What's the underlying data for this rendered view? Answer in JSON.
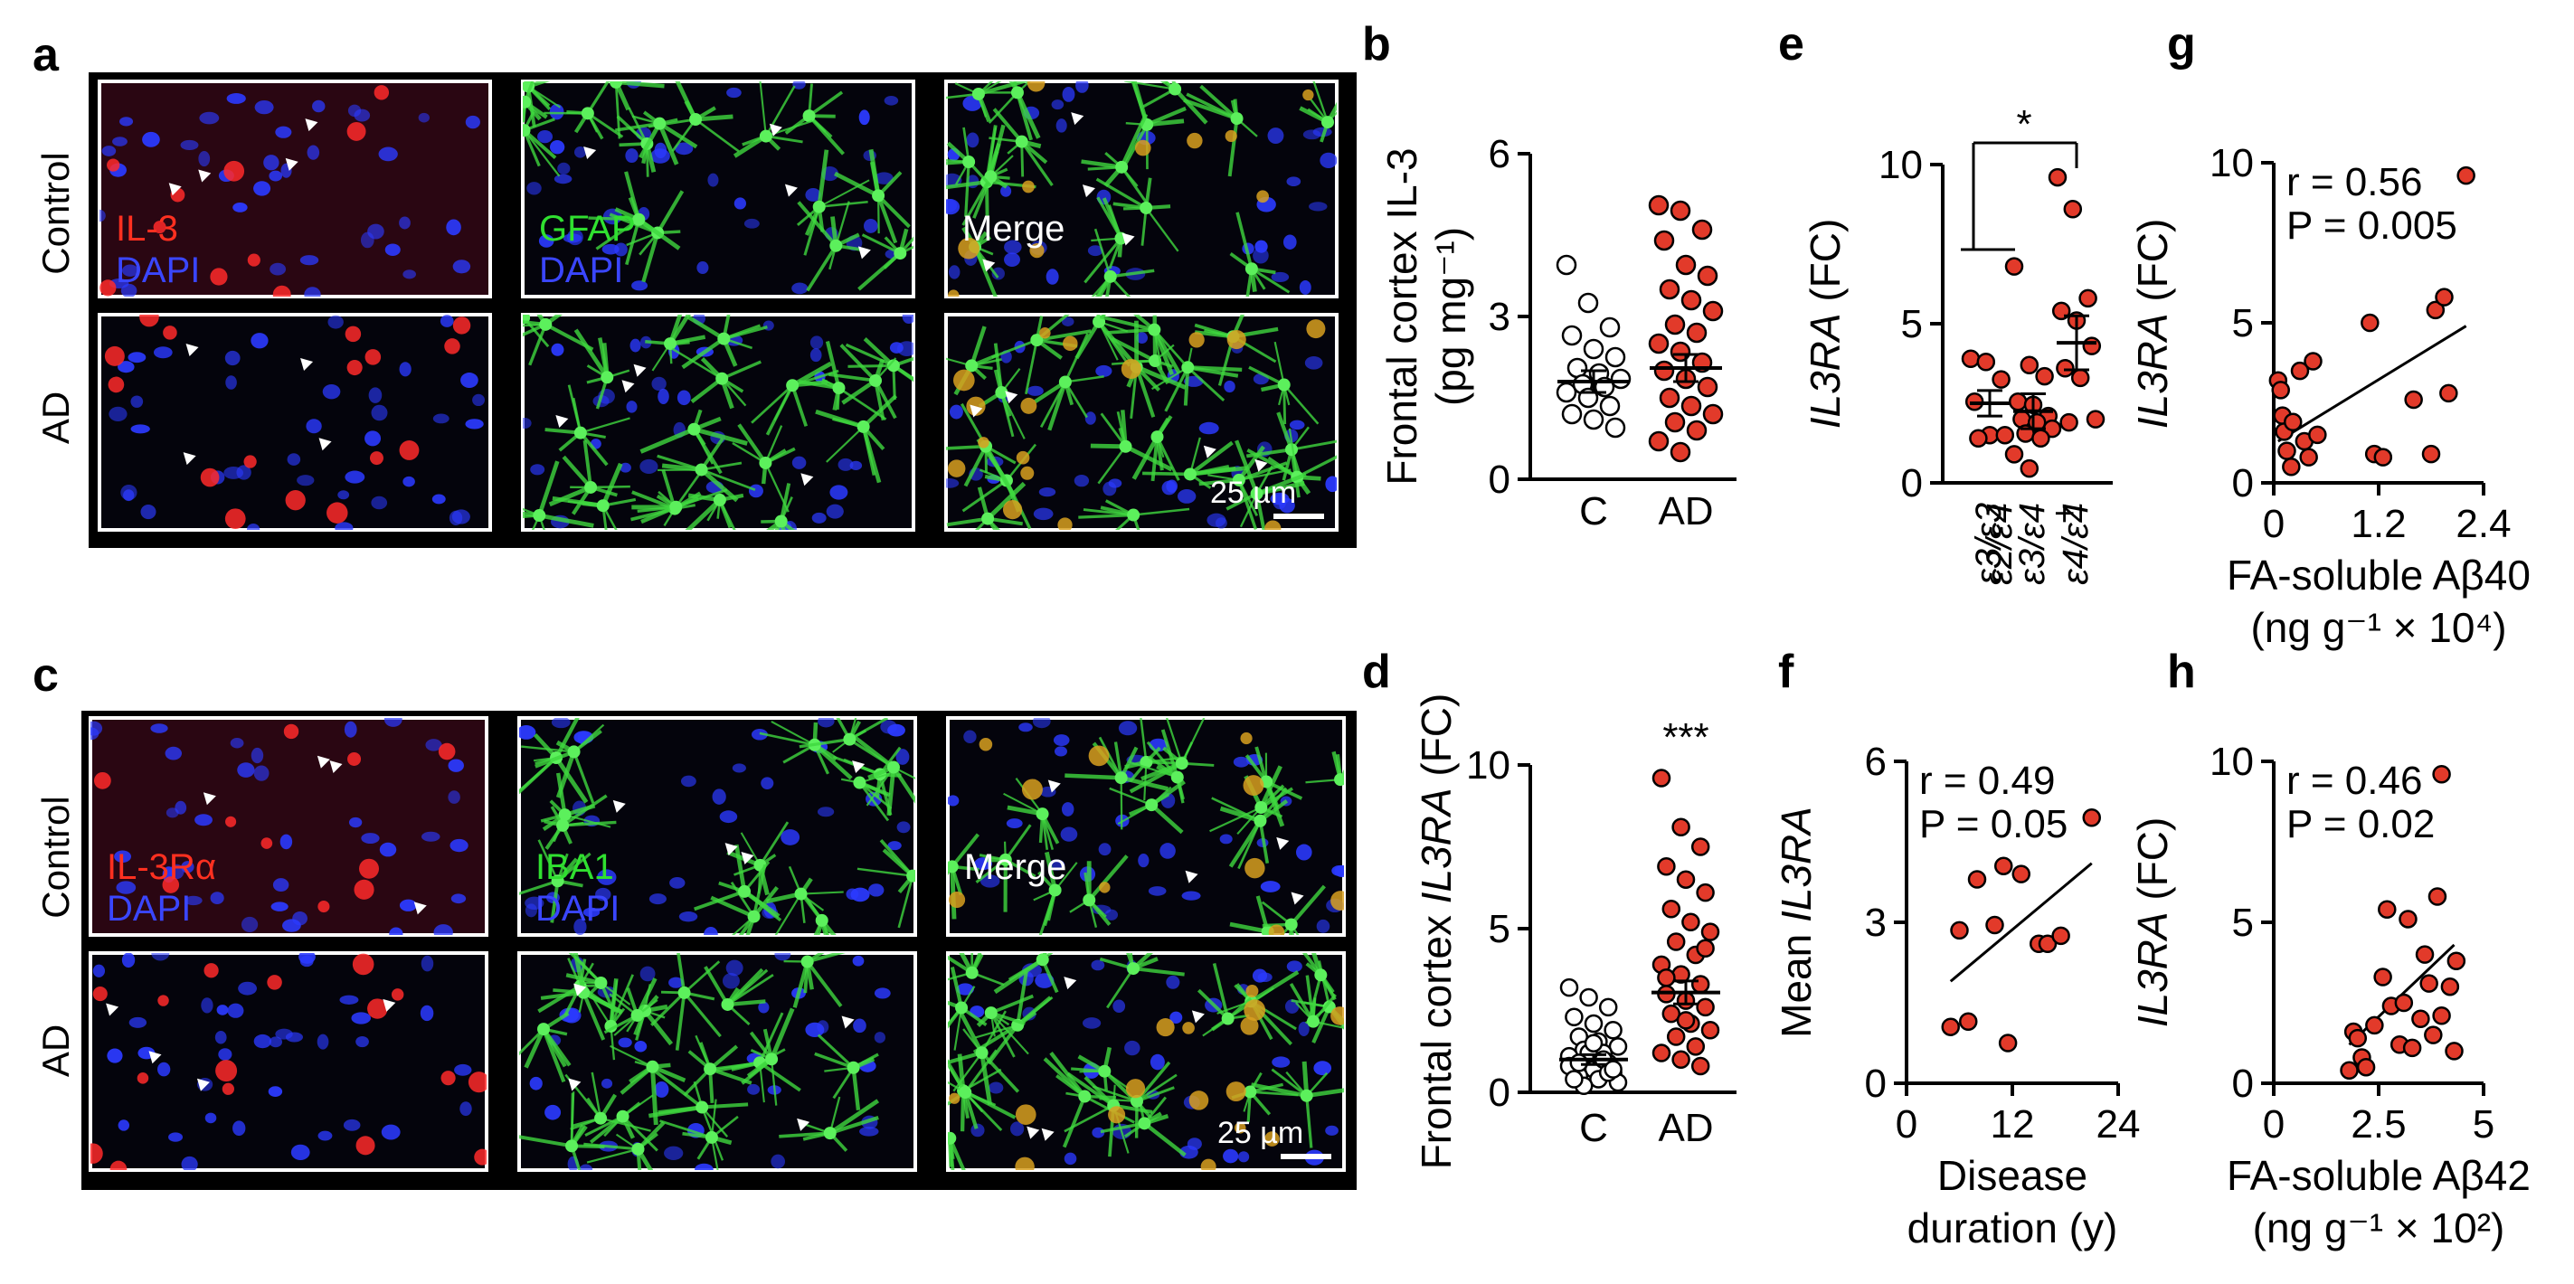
{
  "panel_letters": {
    "a": "a",
    "b": "b",
    "c": "c",
    "d": "d",
    "e": "e",
    "f": "f",
    "g": "g",
    "h": "h"
  },
  "micrographs": {
    "a": {
      "row_labels": [
        "Control",
        "AD"
      ],
      "stain_labels": [
        {
          "top": "IL-3",
          "bottom": "DAPI",
          "top_color": "#ff3020",
          "bottom_color": "#3a46ff"
        },
        {
          "top": "GFAP",
          "bottom": "DAPI",
          "top_color": "#30e030",
          "bottom_color": "#3a46ff"
        },
        {
          "top": "Merge",
          "bottom": "",
          "top_color": "#ffffff",
          "bottom_color": "#ffffff"
        }
      ],
      "scale_bar": "25 µm"
    },
    "c": {
      "row_labels": [
        "Control",
        "AD"
      ],
      "stain_labels": [
        {
          "top": "IL-3Rα",
          "bottom": "DAPI",
          "top_color": "#ff3020",
          "bottom_color": "#3a46ff"
        },
        {
          "top": "IBA1",
          "bottom": "DAPI",
          "top_color": "#30e030",
          "bottom_color": "#3a46ff"
        },
        {
          "top": "Merge",
          "bottom": "",
          "top_color": "#ffffff",
          "bottom_color": "#ffffff"
        }
      ],
      "scale_bar": "25 µm"
    }
  },
  "chart_data": [
    {
      "panel": "b",
      "type": "scatter",
      "ylabel_line1": "Frontal cortex IL-3",
      "ylabel_line2": "(pg mg⁻¹)",
      "categories": [
        "C",
        "AD"
      ],
      "ylim": [
        0,
        6
      ],
      "yticks": [
        "0",
        "3",
        "6"
      ],
      "series": [
        {
          "group": "C",
          "fill": "#ffffff",
          "values": [
            3.95,
            3.25,
            2.8,
            2.65,
            2.4,
            2.25,
            2.05,
            1.95,
            1.85,
            1.75,
            1.7,
            1.6,
            1.5,
            1.35,
            1.2,
            1.1,
            0.95
          ],
          "mean": 1.8,
          "sem": 0.2
        },
        {
          "group": "AD",
          "fill": "#e23a2a",
          "values": [
            5.05,
            4.95,
            4.6,
            4.4,
            3.95,
            3.75,
            3.5,
            3.3,
            3.1,
            2.85,
            2.7,
            2.5,
            2.35,
            2.15,
            2.0,
            1.85,
            1.7,
            1.5,
            1.35,
            1.2,
            1.05,
            0.9,
            0.7,
            0.5
          ],
          "mean": 2.05,
          "sem": 0.25
        }
      ]
    },
    {
      "panel": "d",
      "type": "scatter",
      "ylabel_pre": "Frontal cortex ",
      "ylabel_italic": "IL3RA",
      "ylabel_post": " (FC)",
      "categories": [
        "C",
        "AD"
      ],
      "ylim": [
        0,
        10
      ],
      "yticks": [
        "0",
        "5",
        "10"
      ],
      "annotation": "***",
      "series": [
        {
          "group": "C",
          "fill": "#ffffff",
          "values": [
            3.2,
            2.9,
            2.6,
            2.3,
            2.1,
            1.9,
            1.7,
            1.55,
            1.4,
            1.3,
            1.2,
            1.1,
            1.0,
            0.9,
            0.8,
            0.7,
            0.6,
            0.5,
            0.4,
            0.3,
            0.2,
            1.0,
            0.8,
            1.2,
            0.6,
            0.4,
            1.5,
            0.7,
            0.9
          ],
          "mean": 1.0,
          "sem": 0.15
        },
        {
          "group": "AD",
          "fill": "#e23a2a",
          "values": [
            9.6,
            8.1,
            7.5,
            6.9,
            6.5,
            6.1,
            5.6,
            5.2,
            4.9,
            4.6,
            4.2,
            3.9,
            3.6,
            3.3,
            3.0,
            2.8,
            2.6,
            2.4,
            2.1,
            1.9,
            1.7,
            1.4,
            1.2,
            1.0,
            0.8,
            3.5,
            2.2,
            4.4
          ],
          "mean": 3.05,
          "sem": 0.35
        }
      ]
    },
    {
      "panel": "e",
      "type": "scatter",
      "ylabel_italic": "IL3RA",
      "ylabel_post": " (FC)",
      "categories": [
        "ε3/ε3",
        "ε2/ε4 + ε3/ε4",
        "ε4/ε4"
      ],
      "category_lines": [
        [
          "ε3/ε3"
        ],
        [
          "ε2/ε4",
          "ε3/ε4",
          "+"
        ],
        [
          "ε4/ε4"
        ]
      ],
      "ylim": [
        0,
        10
      ],
      "yticks": [
        "0",
        "5",
        "10"
      ],
      "annotation": "*",
      "series": [
        {
          "group": "ε3/ε3",
          "fill": "#e23a2a",
          "values": [
            3.9,
            3.8,
            3.25,
            2.55,
            1.5,
            1.5,
            1.4
          ],
          "mean": 2.5,
          "sem": 0.4
        },
        {
          "group": "ε2/ε4 + ε3/ε4",
          "fill": "#e23a2a",
          "values": [
            6.8,
            3.7,
            3.35,
            2.55,
            2.45,
            2.1,
            2.0,
            1.9,
            1.7,
            1.55,
            1.4,
            0.9,
            0.45
          ],
          "mean": 2.25,
          "sem": 0.55
        },
        {
          "group": "ε4/ε4",
          "fill": "#e23a2a",
          "values": [
            9.6,
            8.6,
            5.8,
            5.4,
            5.1,
            4.3,
            3.6,
            3.3,
            2.0,
            1.9
          ],
          "mean": 4.4,
          "sem": 0.85
        }
      ]
    },
    {
      "panel": "f",
      "type": "scatter",
      "ylabel_pre": "Mean ",
      "ylabel_italic": "IL3RA",
      "xlabel_line1": "Disease",
      "xlabel_line2": "duration (y)",
      "xlim": [
        0,
        24
      ],
      "xticks": [
        "0",
        "12",
        "24"
      ],
      "ylim": [
        0,
        6
      ],
      "yticks": [
        "0",
        "3",
        "6"
      ],
      "stats_r": "r = 0.49",
      "stats_p": "P = 0.05",
      "points": [
        [
          5,
          1.05
        ],
        [
          7,
          1.15
        ],
        [
          6,
          2.85
        ],
        [
          8,
          3.8
        ],
        [
          10,
          2.95
        ],
        [
          11,
          4.05
        ],
        [
          11.5,
          0.75
        ],
        [
          13,
          3.9
        ],
        [
          15,
          2.6
        ],
        [
          16,
          2.6
        ],
        [
          17.5,
          2.75
        ],
        [
          21,
          4.95
        ]
      ],
      "fit": [
        [
          5,
          1.9
        ],
        [
          21,
          4.1
        ]
      ]
    },
    {
      "panel": "g",
      "type": "scatter",
      "ylabel_italic": "IL3RA",
      "ylabel_post": " (FC)",
      "xlabel_line1": "FA-soluble Aβ40",
      "xlabel_line2": "(ng g⁻¹ × 10⁴)",
      "xlim": [
        0,
        2.4
      ],
      "xticks": [
        "0",
        "1.2",
        "2.4"
      ],
      "ylim": [
        0,
        10
      ],
      "yticks": [
        "0",
        "5",
        "10"
      ],
      "stats_r": "r = 0.56",
      "stats_p": "P = 0.005",
      "points": [
        [
          0.05,
          3.2
        ],
        [
          0.08,
          2.9
        ],
        [
          0.1,
          2.1
        ],
        [
          0.12,
          1.6
        ],
        [
          0.15,
          1.0
        ],
        [
          0.2,
          0.5
        ],
        [
          0.22,
          1.9
        ],
        [
          0.3,
          3.5
        ],
        [
          0.35,
          1.3
        ],
        [
          0.4,
          0.8
        ],
        [
          0.45,
          3.8
        ],
        [
          0.5,
          1.5
        ],
        [
          1.1,
          5.0
        ],
        [
          1.15,
          0.9
        ],
        [
          1.25,
          0.8
        ],
        [
          1.6,
          2.6
        ],
        [
          1.8,
          0.9
        ],
        [
          1.85,
          5.4
        ],
        [
          1.95,
          5.8
        ],
        [
          2.0,
          2.8
        ],
        [
          2.2,
          9.6
        ]
      ],
      "fit": [
        [
          0.05,
          1.3
        ],
        [
          2.2,
          4.9
        ]
      ]
    },
    {
      "panel": "h",
      "type": "scatter",
      "ylabel_italic": "IL3RA",
      "ylabel_post": " (FC)",
      "xlabel_line1": "FA-soluble Aβ42",
      "xlabel_line2": "(ng g⁻¹ × 10²)",
      "xlim": [
        0,
        5
      ],
      "xticks": [
        "0",
        "2.5",
        "5"
      ],
      "ylim": [
        0,
        10
      ],
      "yticks": [
        "0",
        "5",
        "10"
      ],
      "stats_r": "r = 0.46",
      "stats_p": "P = 0.02",
      "points": [
        [
          1.8,
          0.4
        ],
        [
          1.9,
          1.6
        ],
        [
          2.0,
          1.4
        ],
        [
          2.1,
          0.8
        ],
        [
          2.2,
          0.5
        ],
        [
          2.4,
          1.8
        ],
        [
          2.6,
          3.3
        ],
        [
          2.7,
          5.4
        ],
        [
          2.8,
          2.4
        ],
        [
          3.0,
          1.2
        ],
        [
          3.1,
          2.5
        ],
        [
          3.2,
          5.1
        ],
        [
          3.3,
          1.1
        ],
        [
          3.5,
          2.0
        ],
        [
          3.6,
          4.0
        ],
        [
          3.7,
          3.1
        ],
        [
          3.8,
          1.5
        ],
        [
          3.9,
          5.8
        ],
        [
          4.0,
          2.1
        ],
        [
          4.0,
          9.6
        ],
        [
          4.2,
          3.0
        ],
        [
          4.3,
          1.0
        ],
        [
          4.35,
          3.8
        ]
      ],
      "fit": [
        [
          1.8,
          1.2
        ],
        [
          4.3,
          4.3
        ]
      ]
    }
  ]
}
